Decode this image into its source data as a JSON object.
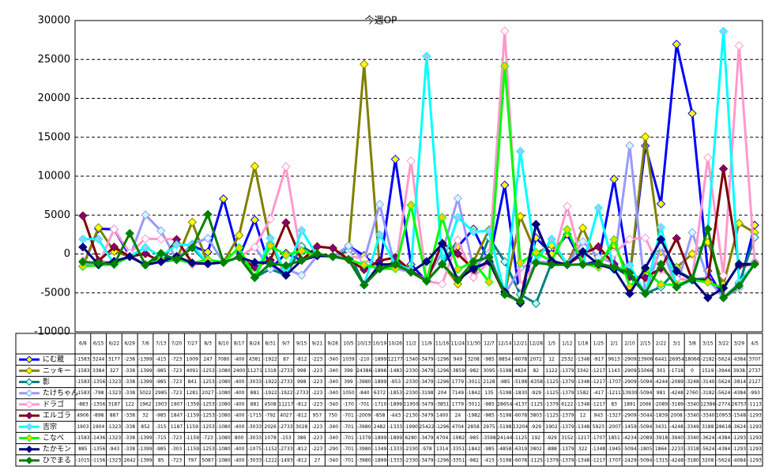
{
  "chart_data": {
    "type": "line",
    "title": "今週OP",
    "categories": [
      "6/8",
      "6/15",
      "6/22",
      "6/29",
      "7/6",
      "7/13",
      "7/20",
      "7/27",
      "8/3",
      "8/10",
      "8/17",
      "8/24",
      "8/31",
      "9/7",
      "9/15",
      "9/21",
      "9/28",
      "10/5",
      "10/13",
      "10/19",
      "10/26",
      "11/2",
      "11/9",
      "11/16",
      "11/24",
      "11/30",
      "12/7",
      "12/14",
      "12/21",
      "12/28",
      "1/5",
      "1/12",
      "1/18",
      "1/25",
      "2/1",
      "2/10",
      "2/15",
      "2/22",
      "3/1",
      "3/8",
      "3/15",
      "3/22",
      "3/29",
      "4/5"
    ],
    "ylim": [
      -10000,
      30000
    ],
    "yticks": [
      -10000,
      -5000,
      0,
      5000,
      10000,
      15000,
      20000,
      25000,
      30000
    ],
    "grid": true,
    "series": [
      {
        "name": "にむ蔵",
        "color": "#0000ff",
        "marker_color": "#ffff00",
        "values": [
          -1583,
          3244,
          3177,
          -238,
          -1399,
          -415,
          -723,
          1009,
          247,
          7080,
          -400,
          4381,
          -1922,
          87,
          -812,
          -223,
          -340,
          1039,
          -210,
          -1899,
          12177,
          -1340,
          -3479,
          -1296,
          949,
          3208,
          -985,
          8854,
          -6078,
          2072,
          12,
          2532,
          -1348,
          -917,
          9613,
          -2909,
          13906,
          6441,
          26954,
          18066,
          -2182,
          -5624,
          -4384,
          3707
        ]
      },
      {
        "name": "ニッキー",
        "color": "#808000",
        "marker_color": "#ffff00",
        "values": [
          -1583,
          3384,
          327,
          -338,
          -1399,
          -985,
          -723,
          4091,
          -1253,
          -1080,
          2400,
          11271,
          1318,
          -2733,
          998,
          -223,
          -340,
          399,
          24386,
          -1896,
          -1483,
          -2330,
          -3479,
          -1296,
          -3859,
          -982,
          3095,
          -5198,
          4824,
          82,
          1122,
          -1379,
          3342,
          -1217,
          1143,
          -2909,
          15066,
          301,
          -1718,
          0,
          1519,
          -3944,
          3938,
          2737
        ]
      },
      {
        "name": "影",
        "color": "#008080",
        "marker_color": "#c0ffff",
        "values": [
          -1583,
          -1356,
          -1323,
          -338,
          -1399,
          -985,
          -723,
          841,
          -1253,
          -1080,
          -400,
          -3033,
          -1922,
          -2733,
          998,
          -223,
          -340,
          399,
          -3980,
          -1899,
          -953,
          -2330,
          -3479,
          -1296,
          1779,
          -3011,
          2128,
          -985,
          -5198,
          -6358,
          -1125,
          -1379,
          -1348,
          -1217,
          -1707,
          -2909,
          -5094,
          -4244,
          -2089,
          -3248,
          -3140,
          -5624,
          -3814,
          2127
        ]
      },
      {
        "name": "たけちゃん",
        "color": "#9999ff",
        "marker_color": "#ccffff",
        "values": [
          -1583,
          -798,
          -1323,
          -338,
          5022,
          2985,
          -723,
          1281,
          2027,
          -1080,
          -400,
          881,
          -1922,
          -1922,
          -2733,
          -223,
          -340,
          1050,
          -840,
          6372,
          -1853,
          -2330,
          -3198,
          204,
          7149,
          -1842,
          135,
          -5198,
          -1830,
          -929,
          -1125,
          -1379,
          1582,
          -417,
          -1211,
          13930,
          -5094,
          981,
          -4248,
          2760,
          -3182,
          -5624,
          -4384,
          -993
        ]
      },
      {
        "name": "ドラゴ",
        "color": "#ff99cc",
        "marker_color": "#ffffff",
        "values": [
          -883,
          -1356,
          3187,
          122,
          1962,
          1903,
          1907,
          -1359,
          -1253,
          -1080,
          -400,
          881,
          4508,
          11217,
          -812,
          -223,
          -340,
          -170,
          -701,
          -1710,
          -1899,
          11950,
          -3479,
          -3851,
          1779,
          -3011,
          -985,
          28654,
          -4137,
          -1125,
          -1379,
          6122,
          -1348,
          -1217,
          83,
          1891,
          2066,
          -2089,
          -3189,
          -3340,
          12386,
          -2774,
          26757,
          -1113
        ]
      },
      {
        "name": "エルゴラ",
        "color": "#800000",
        "marker_color": "#800080",
        "values": [
          4906,
          -898,
          887,
          -338,
          32,
          -985,
          1847,
          -1159,
          -1253,
          -1080,
          -400,
          -1715,
          -792,
          4027,
          -812,
          957,
          750,
          -701,
          -2009,
          -858,
          -443,
          -2130,
          -3479,
          1400,
          24,
          -1982,
          -985,
          -5198,
          -6078,
          3803,
          -1125,
          -1379,
          12,
          943,
          -1327,
          -2909,
          -3044,
          -1839,
          2008,
          -3340,
          -3340,
          10953,
          -1548,
          -1293
        ]
      },
      {
        "name": "吉宗",
        "color": "#00ffff",
        "marker_color": "#99ccff",
        "values": [
          1903,
          1904,
          -1323,
          -338,
          852,
          -315,
          1187,
          1159,
          -1253,
          -1080,
          -400,
          -3033,
          2026,
          -2733,
          3028,
          -223,
          -340,
          -701,
          -3980,
          2482,
          -1333,
          -1990,
          25422,
          -1296,
          4704,
          2858,
          2975,
          -5198,
          13204,
          -929,
          1902,
          -1379,
          -1348,
          5923,
          -2007,
          -1459,
          -5094,
          3431,
          -4248,
          -3349,
          3188,
          28618,
          -3624,
          -1293
        ]
      },
      {
        "name": "こなべ",
        "color": "#00ff00",
        "marker_color": "#ffcc00",
        "values": [
          -1583,
          -1436,
          -1323,
          -338,
          -1399,
          -715,
          -723,
          -1159,
          -723,
          -1080,
          800,
          -3033,
          1078,
          -153,
          386,
          -223,
          -340,
          -701,
          -1379,
          -1899,
          -1899,
          6280,
          -3479,
          4704,
          -1982,
          -985,
          -3598,
          24144,
          -1125,
          192,
          -929,
          3152,
          -1217,
          -1707,
          1851,
          -4234,
          -2089,
          -3918,
          -3940,
          -3340,
          -3624,
          -4384,
          -1293,
          -1293
        ]
      },
      {
        "name": "たかモン",
        "color": "#000080",
        "marker_color": "#000080",
        "values": [
          885,
          -1356,
          -943,
          -338,
          -1399,
          -985,
          -303,
          -1159,
          -1253,
          -1080,
          -400,
          -1075,
          -1152,
          -2733,
          -812,
          -223,
          -290,
          -701,
          -3980,
          -1349,
          -1333,
          -2330,
          -978,
          1314,
          -3351,
          -1842,
          -985,
          -4858,
          -6319,
          3802,
          -888,
          -1379,
          322,
          -1348,
          -1945,
          -5094,
          -1805,
          1864,
          -2233,
          -3318,
          -5624,
          -4384,
          -1293,
          -1293
        ]
      },
      {
        "name": "ひでまる",
        "color": "#008000",
        "marker_color": "#008000",
        "values": [
          -1015,
          -1156,
          -1323,
          2642,
          -1399,
          85,
          -723,
          797,
          5087,
          -1080,
          -400,
          -3033,
          -1222,
          -1493,
          -812,
          27,
          -340,
          -701,
          -3980,
          -1899,
          -1333,
          -2330,
          -3479,
          -1296,
          -3351,
          -982,
          -415,
          -5198,
          -6078,
          -1125,
          -1379,
          -1379,
          -1348,
          -1217,
          -1707,
          -2429,
          -5094,
          -1315,
          -4248,
          -3180,
          3208,
          -5624,
          -4084,
          -1293
        ]
      }
    ]
  }
}
